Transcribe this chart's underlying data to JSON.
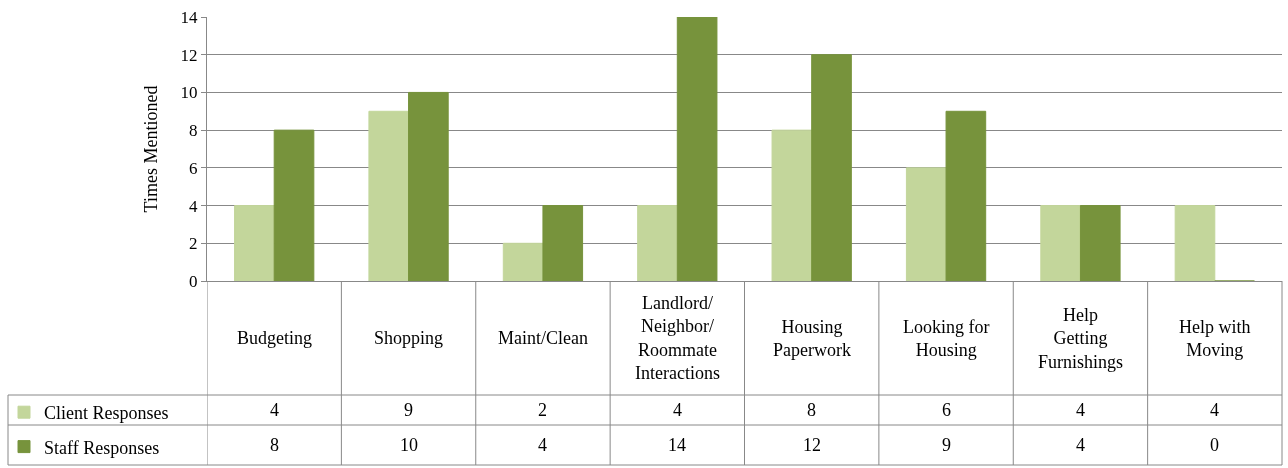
{
  "chart_data": {
    "type": "bar",
    "ylabel": "Times Mentioned",
    "categories": [
      "Budgeting",
      "Shopping",
      "Maint/Clean",
      "Landlord/ Neighbor/ Roommate Interactions",
      "Housing Paperwork",
      "Looking for Housing",
      "Help Getting Furnishings",
      "Help with Moving"
    ],
    "series": [
      {
        "name": "Client Responses",
        "color": "#c3d69b",
        "values": [
          4,
          9,
          2,
          4,
          8,
          6,
          4,
          4
        ]
      },
      {
        "name": "Staff Responses",
        "color": "#77933c",
        "values": [
          8,
          10,
          4,
          14,
          12,
          9,
          4,
          0
        ]
      }
    ],
    "legend": "bottom left",
    "ylim": [
      0,
      14
    ],
    "yticks": [
      0,
      2,
      4,
      6,
      8,
      10,
      12,
      14
    ],
    "grid": "y",
    "data_labels": true
  }
}
